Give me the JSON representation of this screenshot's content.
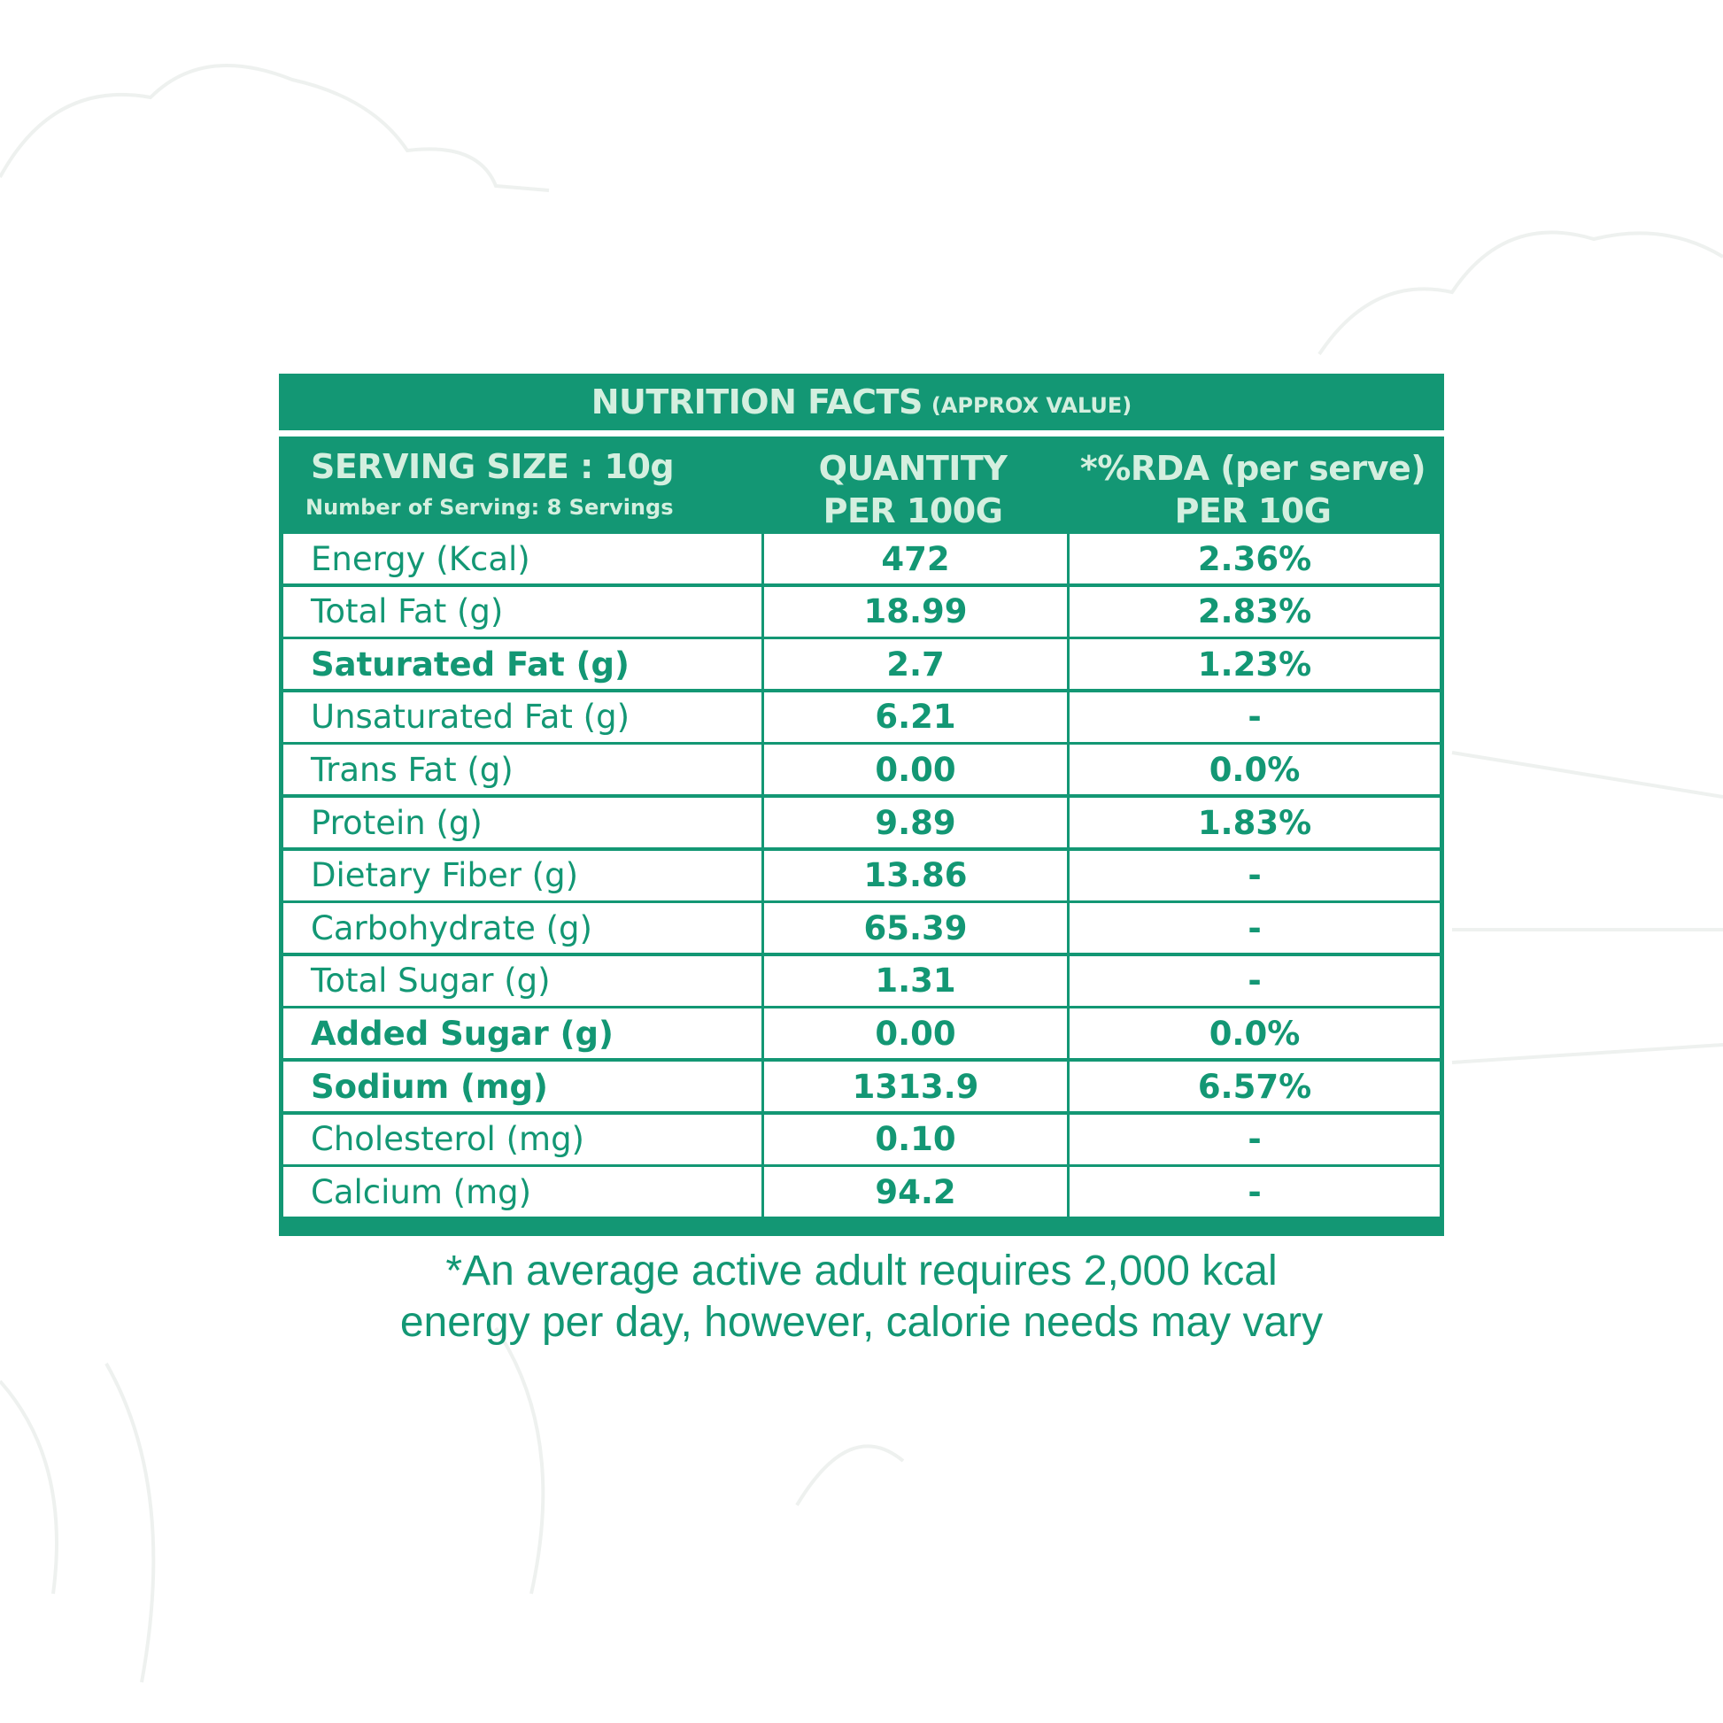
{
  "colors": {
    "brand_green": "#139774",
    "header_text": "#d4efdf",
    "background": "#ffffff"
  },
  "title": {
    "main": "NUTRITION FACTS",
    "sub": "(APPROX VALUE)"
  },
  "header": {
    "serving_size": "SERVING SIZE : 10g",
    "servings": "Number of Serving: 8 Servings",
    "quantity": [
      "QUANTITY",
      "PER 100G"
    ],
    "rda": [
      "*%RDA (per serve)",
      "PER 10G"
    ]
  },
  "rows": [
    {
      "label": "Energy (Kcal)",
      "qty": "472",
      "rda": "2.36%",
      "bold": false
    },
    {
      "label": "Total Fat (g)",
      "qty": "18.99",
      "rda": "2.83%",
      "bold": false
    },
    {
      "label": "Saturated Fat (g)",
      "qty": "2.7",
      "rda": "1.23%",
      "bold": true
    },
    {
      "label": "Unsaturated Fat (g)",
      "qty": "6.21",
      "rda": "-",
      "bold": false
    },
    {
      "label": "Trans Fat (g)",
      "qty": "0.00",
      "rda": "0.0%",
      "bold": false
    },
    {
      "label": "Protein (g)",
      "qty": "9.89",
      "rda": "1.83%",
      "bold": false
    },
    {
      "label": "Dietary Fiber (g)",
      "qty": "13.86",
      "rda": "-",
      "bold": false
    },
    {
      "label": "Carbohydrate  (g)",
      "qty": "65.39",
      "rda": "-",
      "bold": false
    },
    {
      "label": "Total Sugar (g)",
      "qty": "1.31",
      "rda": "-",
      "bold": false
    },
    {
      "label": "Added Sugar (g)",
      "qty": "0.00",
      "rda": "0.0%",
      "bold": true
    },
    {
      "label": "Sodium (mg)",
      "qty": "1313.9",
      "rda": "6.57%",
      "bold": true
    },
    {
      "label": "Cholesterol (mg)",
      "qty": "0.10",
      "rda": "-",
      "bold": false
    },
    {
      "label": "Calcium (mg)",
      "qty": "94.2",
      "rda": "-",
      "bold": false
    }
  ],
  "footnote": [
    "*An average active adult requires 2,000 kcal",
    "energy per day, however, calorie needs may vary"
  ]
}
